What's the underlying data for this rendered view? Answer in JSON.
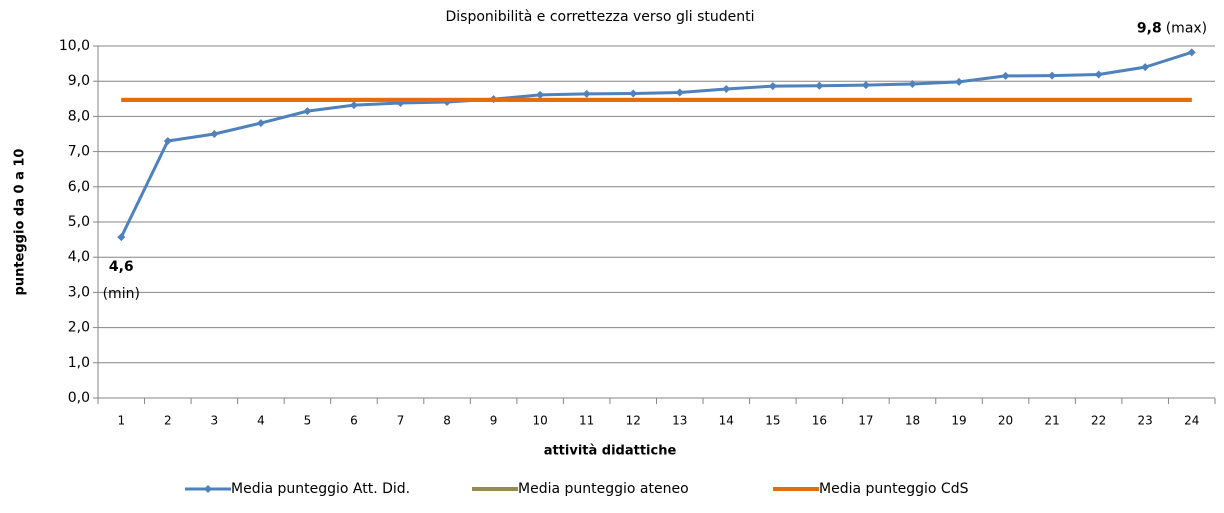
{
  "chart_data": {
    "type": "line",
    "title": "Disponibilità e correttezza verso gli studenti",
    "x_label": "attività didattiche",
    "y_label": "punteggio da 0 a 10",
    "categories": [
      "1",
      "2",
      "3",
      "4",
      "5",
      "6",
      "7",
      "8",
      "9",
      "10",
      "11",
      "12",
      "13",
      "14",
      "15",
      "16",
      "17",
      "18",
      "19",
      "20",
      "21",
      "22",
      "23",
      "24"
    ],
    "series": [
      {
        "name": "Media punteggio Att. Did.",
        "color": "#4f81bd",
        "marker": "diamond",
        "values": [
          4.57,
          7.3,
          7.5,
          7.81,
          8.15,
          8.32,
          8.38,
          8.41,
          8.49,
          8.61,
          8.64,
          8.65,
          8.68,
          8.78,
          8.86,
          8.87,
          8.89,
          8.92,
          8.98,
          9.15,
          9.16,
          9.19,
          9.4,
          9.82
        ],
        "value_labels": [
          "4,6",
          null,
          null,
          null,
          null,
          null,
          null,
          null,
          null,
          null,
          null,
          null,
          null,
          null,
          null,
          null,
          null,
          null,
          null,
          null,
          null,
          null,
          null,
          "9,8"
        ],
        "annotations": [
          "(min)",
          null,
          null,
          null,
          null,
          null,
          null,
          null,
          null,
          null,
          null,
          null,
          null,
          null,
          null,
          null,
          null,
          null,
          null,
          null,
          null,
          null,
          null,
          "(max)"
        ]
      },
      {
        "name": "Media punteggio ateneo",
        "color": "#948a54",
        "values": [
          8.47,
          8.47,
          8.47,
          8.47,
          8.47,
          8.47,
          8.47,
          8.47,
          8.47,
          8.47,
          8.47,
          8.47,
          8.47,
          8.47,
          8.47,
          8.47,
          8.47,
          8.47,
          8.47,
          8.47,
          8.47,
          8.47,
          8.47,
          8.47
        ]
      },
      {
        "name": "Media punteggio CdS",
        "color": "#e46c0a",
        "values": [
          8.47,
          8.47,
          8.47,
          8.47,
          8.47,
          8.47,
          8.47,
          8.47,
          8.47,
          8.47,
          8.47,
          8.47,
          8.47,
          8.47,
          8.47,
          8.47,
          8.47,
          8.47,
          8.47,
          8.47,
          8.47,
          8.47,
          8.47,
          8.47
        ]
      }
    ],
    "ylim": [
      0,
      10
    ],
    "yticks": [
      {
        "value": 0,
        "label": "0,0"
      },
      {
        "value": 1,
        "label": "1,0"
      },
      {
        "value": 2,
        "label": "2,0"
      },
      {
        "value": 3,
        "label": "3,0"
      },
      {
        "value": 4,
        "label": "4,0"
      },
      {
        "value": 5,
        "label": "5,0"
      },
      {
        "value": 6,
        "label": "6,0"
      },
      {
        "value": 7,
        "label": "7,0"
      },
      {
        "value": 8,
        "label": "8,0"
      },
      {
        "value": 9,
        "label": "9,0"
      },
      {
        "value": 10,
        "label": "10,0"
      }
    ],
    "grid": true,
    "legend": "bottom"
  }
}
